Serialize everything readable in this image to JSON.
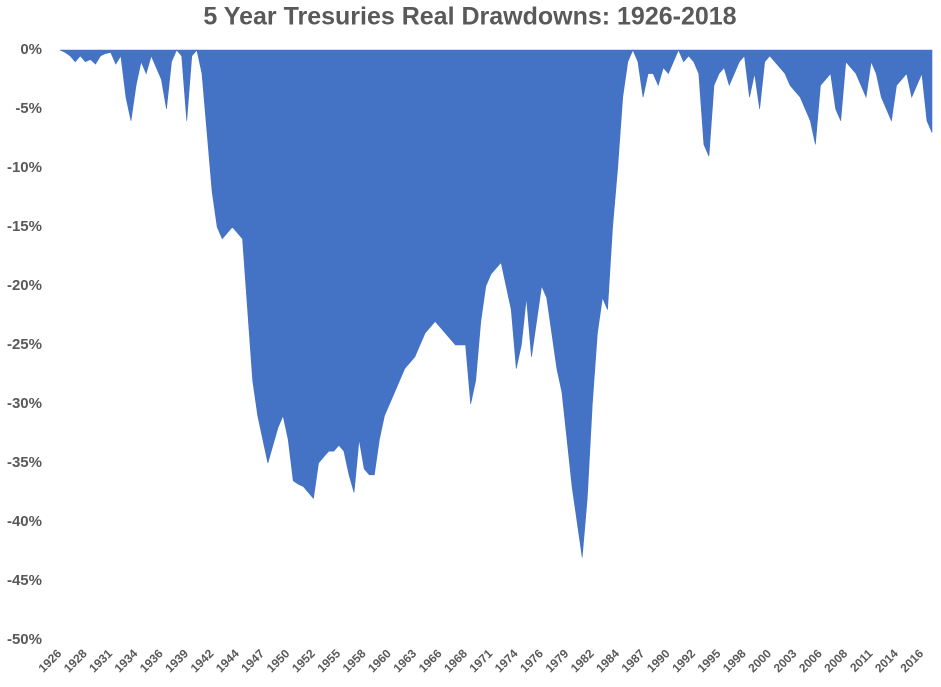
{
  "chart_data": {
    "type": "area",
    "title": "5 Year Tresuries Real Drawdowns: 1926-2018",
    "color": "#4472c4",
    "categories": [
      "1926",
      null,
      null,
      null,
      null,
      "1928",
      null,
      null,
      null,
      null,
      "1931",
      null,
      null,
      null,
      null,
      "1934",
      null,
      null,
      null,
      null,
      "1936",
      null,
      null,
      null,
      null,
      "1939",
      null,
      null,
      null,
      null,
      "1942",
      null,
      null,
      null,
      null,
      "1944",
      null,
      null,
      null,
      null,
      "1947",
      null,
      null,
      null,
      null,
      "1950",
      null,
      null,
      null,
      null,
      "1952",
      null,
      null,
      null,
      null,
      "1955",
      null,
      null,
      null,
      null,
      "1958",
      null,
      null,
      null,
      null,
      "1960",
      null,
      null,
      null,
      null,
      "1963",
      null,
      null,
      null,
      null,
      "1966",
      null,
      null,
      null,
      null,
      "1968",
      null,
      null,
      null,
      null,
      "1971",
      null,
      null,
      null,
      null,
      "1974",
      null,
      null,
      null,
      null,
      "1976",
      null,
      null,
      null,
      null,
      "1979",
      null,
      null,
      null,
      null,
      "1982",
      null,
      null,
      null,
      null,
      "1984",
      null,
      null,
      null,
      null,
      "1987",
      null,
      null,
      null,
      null,
      "1990",
      null,
      null,
      null,
      null,
      "1992",
      null,
      null,
      null,
      null,
      "1995",
      null,
      null,
      null,
      null,
      "1998",
      null,
      null,
      null,
      null,
      "2000",
      null,
      null,
      null,
      null,
      "2003",
      null,
      null,
      null,
      null,
      "2006",
      null,
      null,
      null,
      null,
      "2008",
      null,
      null,
      null,
      null,
      "2011",
      null,
      null,
      null,
      null,
      "2014",
      null,
      null,
      null,
      null,
      "2016",
      null,
      null
    ],
    "values": [
      0,
      -0.2,
      -0.5,
      -1,
      -0.5,
      -1,
      -0.8,
      -1.2,
      -0.5,
      -0.3,
      -0.2,
      -1.2,
      -0.5,
      -4,
      -6,
      -3,
      -1,
      -2,
      -0.5,
      -1.5,
      -2.5,
      -5,
      -1,
      0,
      -0.5,
      -6,
      -0.5,
      0,
      -2,
      -7,
      -12,
      -15,
      -16,
      -15.5,
      -15,
      -15.5,
      -16,
      -22,
      -28,
      -31,
      -33,
      -35,
      -33.5,
      -32,
      -31,
      -33,
      -36.5,
      -36.8,
      -37,
      -37.5,
      -38,
      -35,
      -34.5,
      -34,
      -34,
      -33.5,
      -34,
      -36,
      -37.5,
      -33,
      -35.5,
      -36,
      -36,
      -33,
      -31,
      -30,
      -29,
      -28,
      -27,
      -26.5,
      -26,
      -25,
      -24,
      -23.5,
      -23,
      -23.5,
      -24,
      -24.5,
      -25,
      -25,
      -25,
      -30,
      -28,
      -23,
      -20,
      -19,
      -18.5,
      -18,
      -20,
      -22,
      -27,
      -25,
      -21,
      -26,
      -23,
      -20,
      -21,
      -24,
      -27,
      -29,
      -33,
      -37,
      -40,
      -43,
      -38,
      -30,
      -24,
      -21,
      -22,
      -15,
      -10,
      -4,
      -1,
      0,
      -1,
      -4,
      -2,
      -2,
      -3,
      -1.5,
      -2,
      -1,
      0,
      -1,
      -0.5,
      -1,
      -2,
      -8,
      -9,
      -3,
      -2,
      -1.5,
      -3,
      -2,
      -1,
      -0.5,
      -4,
      -2,
      -5,
      -1,
      -0.5,
      -1,
      -1.5,
      -2,
      -3,
      -3.5,
      -4,
      -5,
      -6,
      -8,
      -3,
      -2.5,
      -2,
      -5,
      -6,
      -1,
      -1.5,
      -2,
      -3,
      -4,
      -1,
      -2,
      -4,
      -5,
      -6,
      -3,
      -2.5,
      -2,
      -4,
      -3,
      -2,
      -6,
      -7
    ],
    "ylim": [
      -50,
      0
    ],
    "yticks": [
      {
        "value": 0,
        "label": "0%"
      },
      {
        "value": -5,
        "label": "-5%"
      },
      {
        "value": -10,
        "label": "-10%"
      },
      {
        "value": -15,
        "label": "-15%"
      },
      {
        "value": -20,
        "label": "-20%"
      },
      {
        "value": -25,
        "label": "-25%"
      },
      {
        "value": -30,
        "label": "-30%"
      },
      {
        "value": -35,
        "label": "-35%"
      },
      {
        "value": -40,
        "label": "-40%"
      },
      {
        "value": -45,
        "label": "-45%"
      },
      {
        "value": -50,
        "label": "-50%"
      }
    ]
  }
}
